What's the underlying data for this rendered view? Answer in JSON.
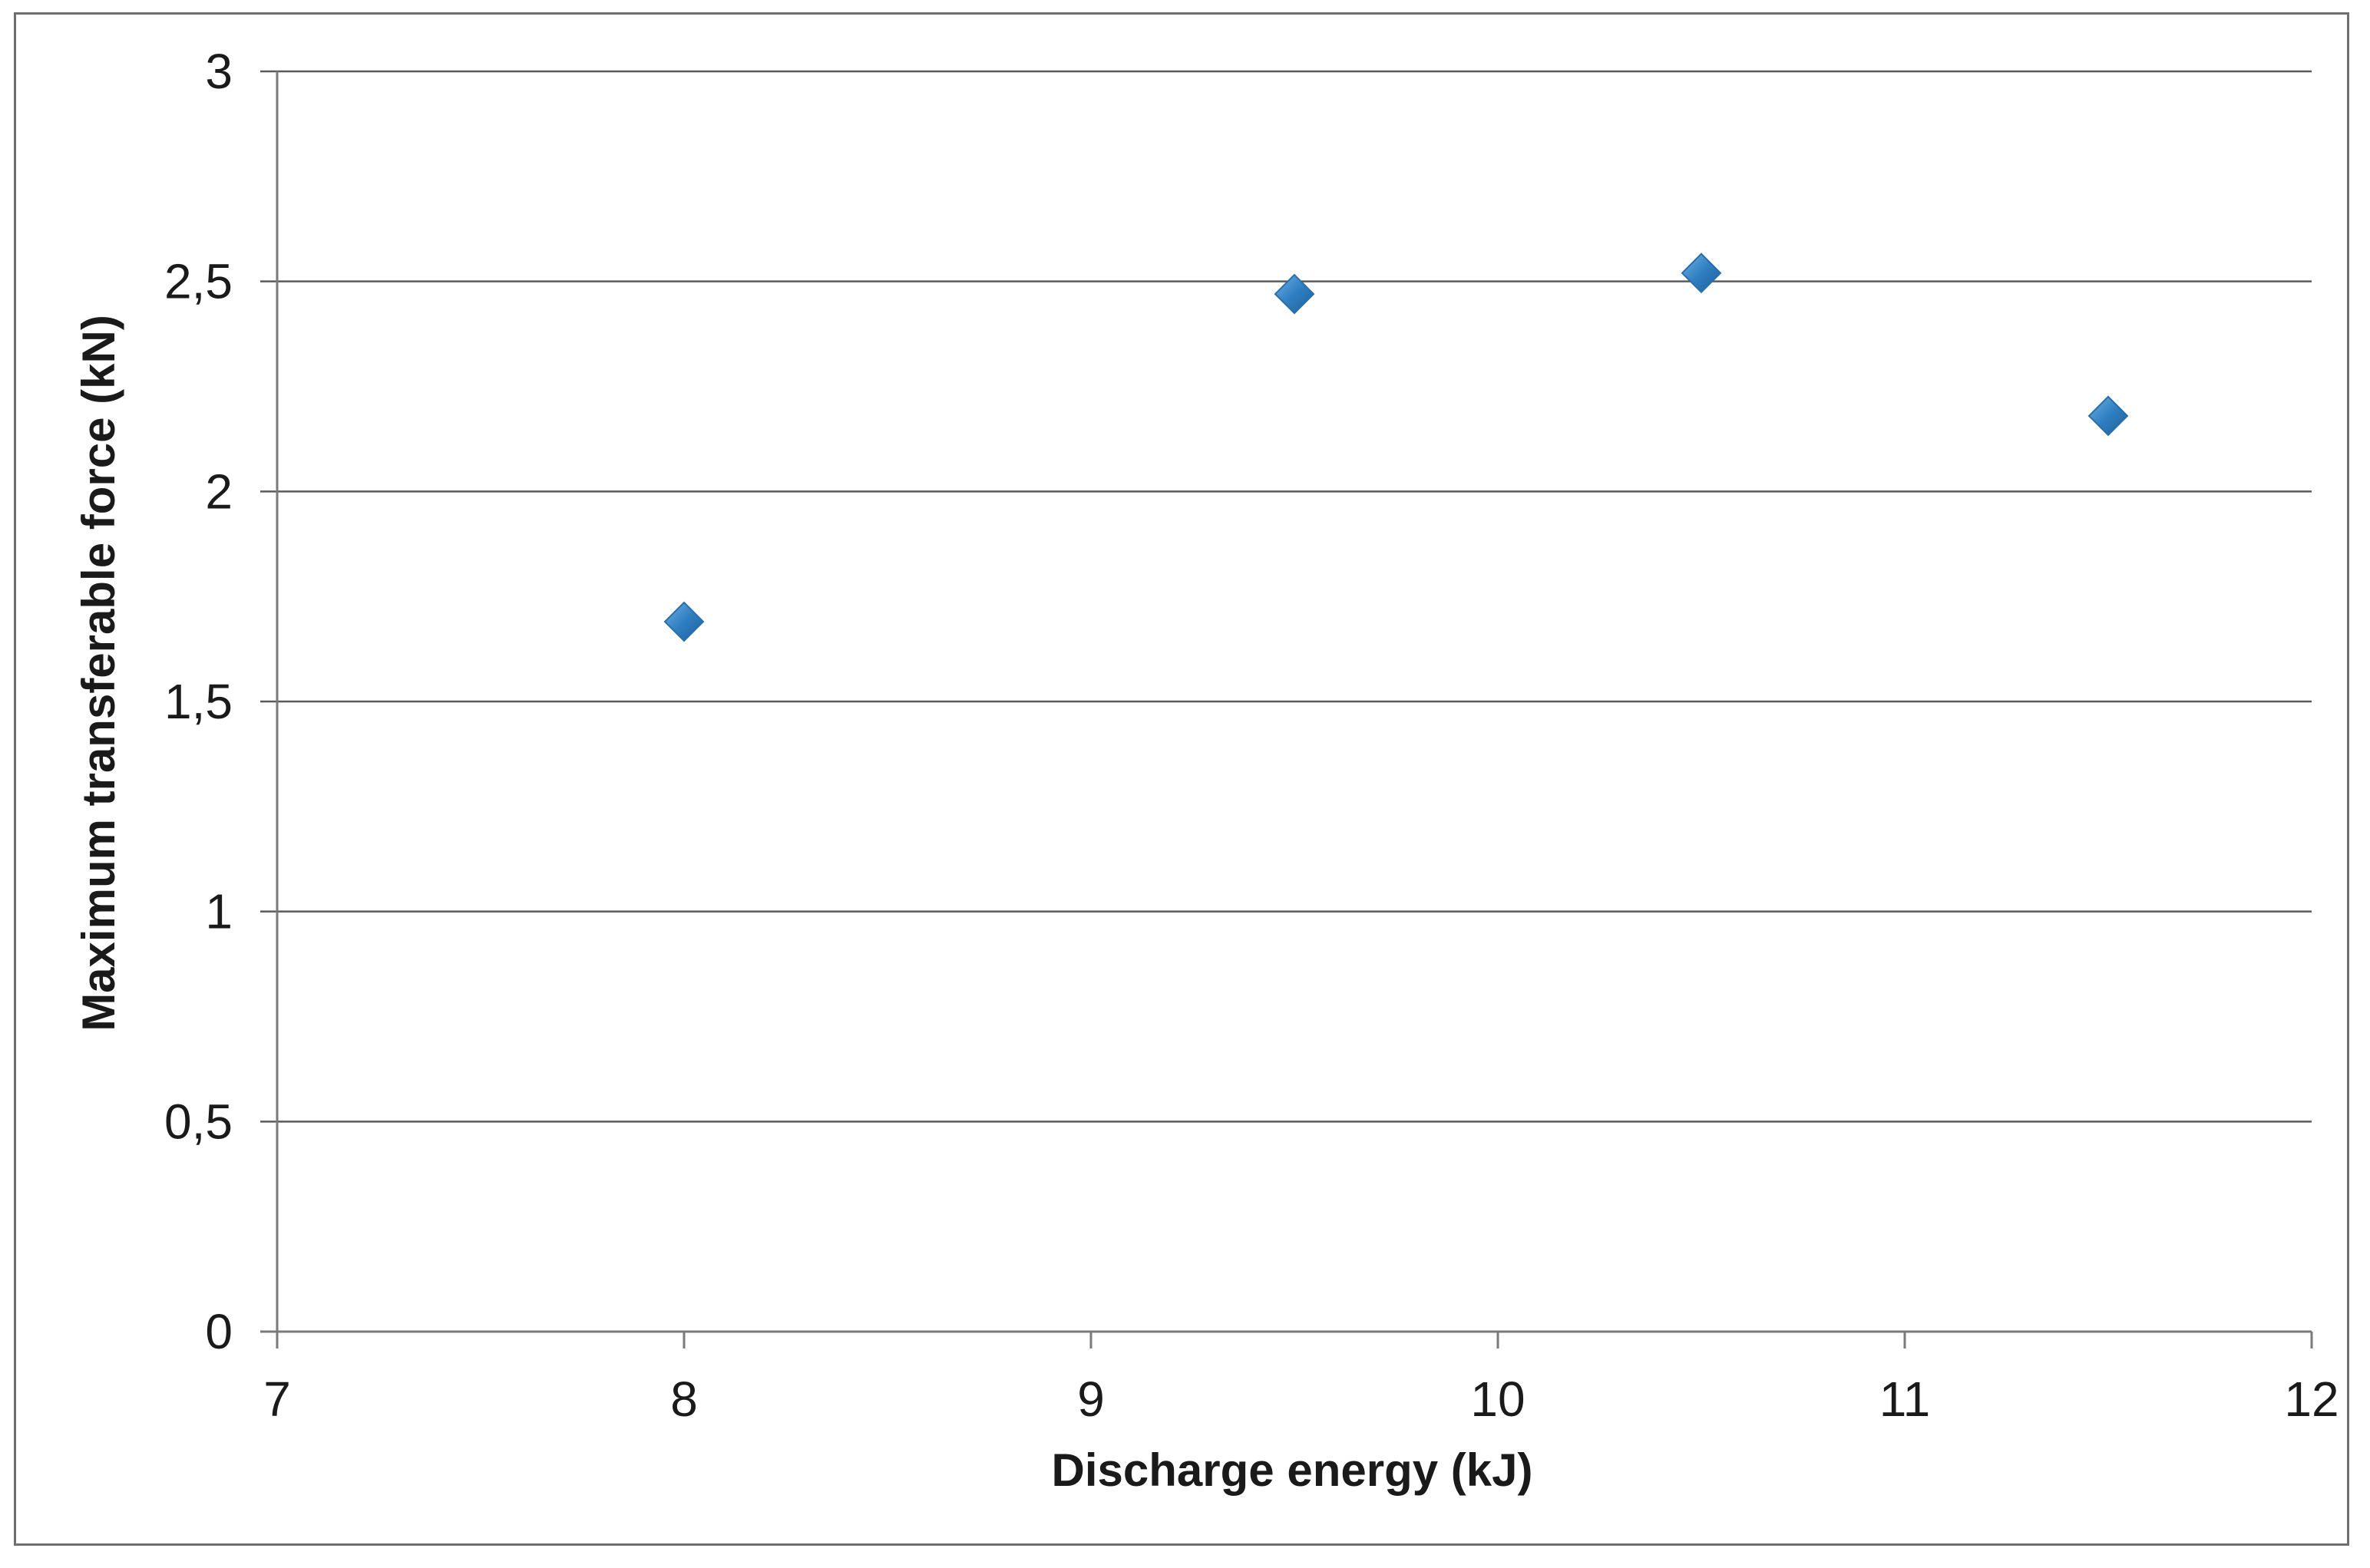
{
  "chart_data": {
    "type": "scatter",
    "title": "",
    "xlabel": "Discharge energy (kJ)",
    "ylabel": "Maximum transferable force (kN)",
    "xlim": [
      7,
      12
    ],
    "ylim": [
      0,
      3
    ],
    "x_ticks": [
      {
        "value": 7,
        "label": "7"
      },
      {
        "value": 8,
        "label": "8"
      },
      {
        "value": 9,
        "label": "9"
      },
      {
        "value": 10,
        "label": "10"
      },
      {
        "value": 11,
        "label": "11"
      },
      {
        "value": 12,
        "label": "12"
      }
    ],
    "y_ticks": [
      {
        "value": 0,
        "label": "0"
      },
      {
        "value": 0.5,
        "label": "0,5"
      },
      {
        "value": 1,
        "label": "1"
      },
      {
        "value": 1.5,
        "label": "1,5"
      },
      {
        "value": 2,
        "label": "2"
      },
      {
        "value": 2.5,
        "label": "2,5"
      },
      {
        "value": 3,
        "label": "3"
      }
    ],
    "grid": "horizontal",
    "legend": "none",
    "marker": "diamond",
    "marker_color": "#2f7fc1",
    "series": [
      {
        "points": [
          {
            "x": 8.0,
            "y": 1.69
          },
          {
            "x": 9.5,
            "y": 2.47
          },
          {
            "x": 10.5,
            "y": 2.52
          },
          {
            "x": 11.5,
            "y": 2.18
          }
        ]
      }
    ]
  }
}
